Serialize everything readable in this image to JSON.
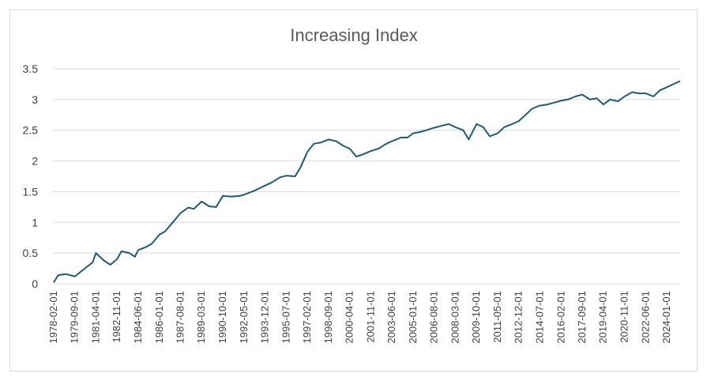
{
  "chart_data": {
    "type": "line",
    "title": "Increasing Index",
    "xlabel": "",
    "ylabel": "",
    "ylim": [
      0,
      3.5
    ],
    "y_ticks": [
      "0",
      "0.5",
      "1",
      "1.5",
      "2",
      "2.5",
      "3",
      "3.5"
    ],
    "x_ticks": [
      "1978-02-01",
      "1979-09-01",
      "1981-04-01",
      "1982-11-01",
      "1984-06-01",
      "1986-01-01",
      "1987-08-01",
      "1989-03-01",
      "1990-10-01",
      "1992-05-01",
      "1993-12-01",
      "1995-07-01",
      "1997-02-01",
      "1998-09-01",
      "2000-04-01",
      "2001-11-01",
      "2003-06-01",
      "2005-01-01",
      "2006-08-01",
      "2008-03-01",
      "2009-10-01",
      "2011-05-01",
      "2012-12-01",
      "2014-07-01",
      "2016-02-01",
      "2017-09-01",
      "2019-04-01",
      "2020-11-01",
      "2022-06-01",
      "2024-01-01"
    ],
    "grid": true,
    "legend": "none",
    "series": [
      {
        "color": "#1b5b7a",
        "x": [
          "1978-02-01",
          "1978-06-01",
          "1979-01-01",
          "1979-09-01",
          "1980-06-01",
          "1981-01-01",
          "1981-04-01",
          "1981-11-01",
          "1982-05-01",
          "1982-11-01",
          "1983-03-01",
          "1983-10-01",
          "1984-03-01",
          "1984-06-01",
          "1985-01-01",
          "1985-06-01",
          "1986-01-01",
          "1986-06-01",
          "1987-01-01",
          "1987-08-01",
          "1988-03-01",
          "1988-08-01",
          "1989-03-01",
          "1989-10-01",
          "1990-04-01",
          "1990-10-01",
          "1991-06-01",
          "1992-01-01",
          "1992-05-01",
          "1993-03-01",
          "1993-12-01",
          "1994-06-01",
          "1995-01-01",
          "1995-07-01",
          "1996-03-01",
          "1996-08-01",
          "1997-02-01",
          "1997-08-01",
          "1998-02-01",
          "1998-09-01",
          "1999-04-01",
          "1999-10-01",
          "2000-04-01",
          "2000-10-01",
          "2001-03-01",
          "2001-11-01",
          "2002-06-01",
          "2003-01-01",
          "2003-06-01",
          "2004-02-01",
          "2004-08-01",
          "2005-01-01",
          "2005-07-01",
          "2006-01-01",
          "2006-08-01",
          "2007-02-01",
          "2007-09-01",
          "2008-03-01",
          "2008-10-01",
          "2009-03-01",
          "2009-10-01",
          "2010-04-01",
          "2010-10-01",
          "2011-05-01",
          "2011-11-01",
          "2012-06-01",
          "2012-12-01",
          "2013-06-01",
          "2013-12-01",
          "2014-07-01",
          "2015-02-01",
          "2015-08-01",
          "2016-02-01",
          "2016-08-01",
          "2017-03-01",
          "2017-09-01",
          "2018-04-01",
          "2018-10-01",
          "2019-04-01",
          "2019-10-01",
          "2020-05-01",
          "2020-11-01",
          "2021-06-01",
          "2021-12-01",
          "2022-06-01",
          "2023-01-01",
          "2023-07-01",
          "2024-01-01",
          "2024-07-01",
          "2025-01-01"
        ],
        "y": [
          0.02,
          0.14,
          0.16,
          0.12,
          0.25,
          0.35,
          0.5,
          0.38,
          0.31,
          0.4,
          0.53,
          0.5,
          0.44,
          0.55,
          0.6,
          0.65,
          0.8,
          0.85,
          1.0,
          1.15,
          1.24,
          1.22,
          1.34,
          1.26,
          1.25,
          1.43,
          1.42,
          1.43,
          1.45,
          1.52,
          1.6,
          1.65,
          1.73,
          1.76,
          1.75,
          1.9,
          2.15,
          2.28,
          2.3,
          2.35,
          2.32,
          2.25,
          2.2,
          2.07,
          2.1,
          2.16,
          2.2,
          2.28,
          2.32,
          2.38,
          2.38,
          2.45,
          2.47,
          2.5,
          2.54,
          2.57,
          2.6,
          2.55,
          2.5,
          2.35,
          2.6,
          2.55,
          2.4,
          2.45,
          2.55,
          2.6,
          2.65,
          2.75,
          2.85,
          2.9,
          2.92,
          2.95,
          2.98,
          3.0,
          3.05,
          3.08,
          3.0,
          3.02,
          2.92,
          3.0,
          2.97,
          3.05,
          3.12,
          3.1,
          3.1,
          3.05,
          3.15,
          3.2,
          3.25,
          3.3
        ]
      }
    ]
  }
}
